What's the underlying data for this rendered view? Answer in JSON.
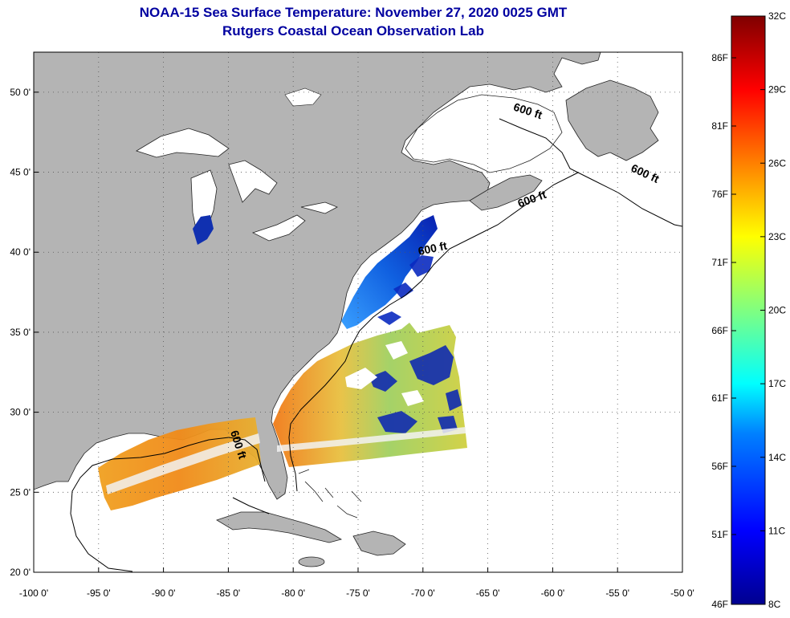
{
  "title": {
    "line1": "NOAA-15 Sea Surface Temperature:  November 27, 2020 0025 GMT",
    "line2": "Rutgers Coastal Ocean Observation Lab"
  },
  "map": {
    "lon_range": [
      -100,
      -50
    ],
    "lat_range": [
      20,
      52.5
    ],
    "lon_ticks": [
      {
        "value": -100,
        "label": "-100 0'"
      },
      {
        "value": -95,
        "label": "-95 0'"
      },
      {
        "value": -90,
        "label": "-90 0'"
      },
      {
        "value": -85,
        "label": "-85 0'"
      },
      {
        "value": -80,
        "label": "-80 0'"
      },
      {
        "value": -75,
        "label": "-75 0'"
      },
      {
        "value": -70,
        "label": "-70 0'"
      },
      {
        "value": -65,
        "label": "-65 0'"
      },
      {
        "value": -60,
        "label": "-60 0'"
      },
      {
        "value": -55,
        "label": "-55 0'"
      },
      {
        "value": -50,
        "label": "-50 0'"
      }
    ],
    "lat_ticks": [
      {
        "value": 20,
        "label": "20 0'"
      },
      {
        "value": 25,
        "label": "25 0'"
      },
      {
        "value": 30,
        "label": "30 0'"
      },
      {
        "value": 35,
        "label": "35 0'"
      },
      {
        "value": 40,
        "label": "40 0'"
      },
      {
        "value": 45,
        "label": "45 0'"
      },
      {
        "value": 50,
        "label": "50 0'"
      }
    ],
    "contour_labels": [
      {
        "text": "600 ft",
        "lon": -62,
        "lat": 48.6,
        "rotate": 18
      },
      {
        "text": "600 ft",
        "lon": -53,
        "lat": 44.7,
        "rotate": 25
      },
      {
        "text": "600 ft",
        "lon": -61.5,
        "lat": 43.1,
        "rotate": -20
      },
      {
        "text": "600 ft",
        "lon": -69.2,
        "lat": 40.0,
        "rotate": -12
      },
      {
        "text": "600 ft",
        "lon": -84.5,
        "lat": 27.9,
        "rotate": 72
      }
    ],
    "land_color": "#b4b4b4",
    "ocean_color": "#ffffff"
  },
  "colorbar": {
    "celsius_labels": [
      "32C",
      "29C",
      "26C",
      "23C",
      "20C",
      "17C",
      "14C",
      "11C",
      "8C"
    ],
    "fahrenheit_labels": [
      "86F",
      "81F",
      "76F",
      "71F",
      "66F",
      "61F",
      "56F",
      "51F",
      "46F"
    ],
    "colors": [
      "#7f0000",
      "#ff0000",
      "#ff8000",
      "#ffff00",
      "#80ff80",
      "#00ffff",
      "#0080ff",
      "#0000ff",
      "#00008f"
    ]
  }
}
